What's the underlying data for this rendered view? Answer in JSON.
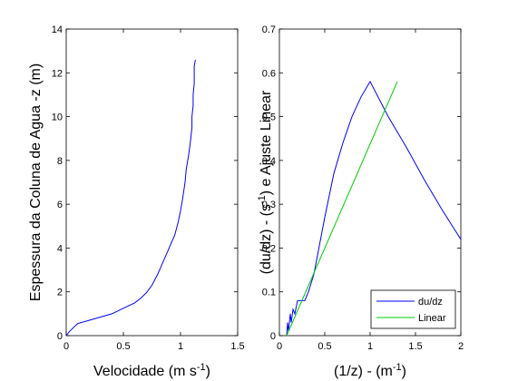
{
  "chart_data": [
    {
      "type": "line",
      "xlabel": "Velocidade (m s",
      "xlabel_sup": "-1",
      "xlabel_tail": ")",
      "ylabel": "Espessura da Coluna de Agua -z (m)",
      "xlim": [
        0,
        1.5
      ],
      "ylim": [
        0,
        14
      ],
      "x_ticks": [
        "0",
        "0.5",
        "1",
        "1.5"
      ],
      "y_ticks": [
        "0",
        "2",
        "4",
        "6",
        "8",
        "10",
        "12",
        "14"
      ],
      "legend": "none",
      "series": [
        {
          "color": "#0000ff",
          "x": [
            0,
            0.03,
            0.07,
            0.1,
            0.2,
            0.3,
            0.4,
            0.5,
            0.6,
            0.65,
            0.7,
            0.75,
            0.8,
            0.85,
            0.9,
            0.95,
            0.98,
            1.0,
            1.02,
            1.04,
            1.05,
            1.07,
            1.08,
            1.09,
            1.1,
            1.1,
            1.11,
            1.11,
            1.12,
            1.12,
            1.12,
            1.13
          ],
          "y": [
            0,
            0.2,
            0.4,
            0.55,
            0.7,
            0.85,
            1.0,
            1.25,
            1.5,
            1.7,
            1.95,
            2.3,
            2.8,
            3.4,
            4.0,
            4.6,
            5.2,
            5.7,
            6.3,
            7.0,
            7.6,
            8.2,
            8.6,
            9.0,
            9.5,
            10.0,
            10.5,
            11.0,
            11.5,
            12.0,
            12.3,
            12.6
          ]
        }
      ]
    },
    {
      "type": "line",
      "xlabel": "(1/z) - (m",
      "xlabel_sup": "-1",
      "xlabel_tail": ")",
      "ylabel": "(du/dz) - (s",
      "ylabel_sup": "-1",
      "ylabel_tail": ") e Ajuste Linear",
      "xlim": [
        0,
        2
      ],
      "ylim": [
        0,
        0.7
      ],
      "x_ticks": [
        "0",
        "0.5",
        "1",
        "1.5",
        "2"
      ],
      "y_ticks": [
        "0",
        "0.1",
        "0.2",
        "0.3",
        "0.4",
        "0.5",
        "0.6",
        "0.7"
      ],
      "legend": "bottom-right",
      "series": [
        {
          "name": "du/dz",
          "color": "#0000ff",
          "x": [
            0.08,
            0.09,
            0.1,
            0.12,
            0.13,
            0.15,
            0.17,
            0.2,
            0.25,
            0.28,
            0.32,
            0.38,
            0.5,
            0.6,
            0.7,
            0.8,
            0.9,
            1.0,
            1.2,
            1.4,
            1.6,
            1.8,
            2.0
          ],
          "y": [
            0.0,
            0.03,
            0.01,
            0.05,
            0.03,
            0.06,
            0.05,
            0.08,
            0.08,
            0.08,
            0.1,
            0.14,
            0.27,
            0.37,
            0.44,
            0.5,
            0.545,
            0.58,
            0.5,
            0.43,
            0.355,
            0.285,
            0.22
          ]
        },
        {
          "name": "Linear",
          "color": "#00cc00",
          "x": [
            0.08,
            1.3
          ],
          "y": [
            0.0,
            0.58
          ]
        }
      ]
    }
  ]
}
